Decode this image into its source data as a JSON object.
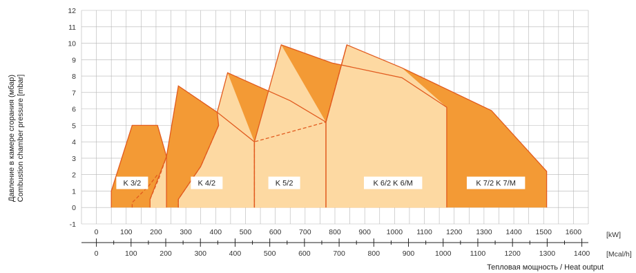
{
  "chart_data": {
    "type": "area",
    "title": "",
    "y_axis": {
      "label_line1": "Давление в камере сгорания (мбар)",
      "label_line2": "Combustion chamber pressure [mbar]",
      "ticks": [
        -1,
        0,
        1,
        2,
        3,
        4,
        5,
        6,
        7,
        8,
        9,
        10,
        11,
        12
      ],
      "range": [
        -1,
        12
      ]
    },
    "x_axis_kw": {
      "unit": "[kW]",
      "ticks": [
        0,
        100,
        200,
        300,
        400,
        500,
        600,
        700,
        800,
        900,
        1000,
        1100,
        1200,
        1300,
        1400,
        1500,
        1600
      ],
      "range": [
        -50,
        1650
      ]
    },
    "x_axis_mcal": {
      "unit": "[Mcal/h]",
      "ticks": [
        0,
        100,
        200,
        300,
        400,
        500,
        600,
        700,
        800,
        900,
        1000,
        1100,
        1200,
        1300,
        1400
      ]
    },
    "xlabel": "Тепловая мощность / Heat output",
    "grid": true,
    "colors": {
      "dark": "#f39a35",
      "light": "#fdd9a2",
      "edge": "#e15a1e",
      "grid": "#b5b5b5",
      "label_box": "#ffffff"
    },
    "series": [
      {
        "name": "K 3/2",
        "label_at": [
          120,
          1.5
        ],
        "boundary": [
          [
            50,
            0
          ],
          [
            50,
            1
          ],
          [
            120,
            5
          ],
          [
            205,
            5
          ],
          [
            235,
            3.1
          ],
          [
            235,
            0
          ]
        ],
        "min_curve": [
          [
            120,
            0.0
          ],
          [
            120,
            0.3
          ],
          [
            175,
            1.3
          ],
          [
            205,
            2.0
          ]
        ]
      },
      {
        "name": "K 4/2",
        "label_at": [
          370,
          1.5
        ],
        "boundary": [
          [
            180,
            0
          ],
          [
            180,
            0.5
          ],
          [
            235,
            3.1
          ],
          [
            275,
            7.4
          ],
          [
            405,
            5.8
          ],
          [
            530,
            4.0
          ],
          [
            530,
            0
          ]
        ],
        "min_curve": [
          [
            180,
            0.5
          ],
          [
            210,
            1.8
          ],
          [
            235,
            3.1
          ]
        ]
      },
      {
        "name": "K 5/2",
        "label_at": [
          630,
          1.5
        ],
        "boundary": [
          [
            275,
            0
          ],
          [
            275,
            0.5
          ],
          [
            350,
            2.5
          ],
          [
            410,
            5.0
          ],
          [
            405,
            5.8
          ],
          [
            440,
            8.2
          ],
          [
            650,
            6.5
          ],
          [
            770,
            5.2
          ],
          [
            770,
            0
          ]
        ],
        "min_curve": [
          [
            275,
            0.0
          ],
          [
            275,
            0.5
          ],
          [
            350,
            2.5
          ],
          [
            410,
            5.0
          ]
        ]
      },
      {
        "name": "K 6/2 K 6/M",
        "label_at": [
          995,
          1.5
        ],
        "boundary": [
          [
            530,
            0
          ],
          [
            530,
            4.0
          ],
          [
            620,
            9.9
          ],
          [
            790,
            8.8
          ],
          [
            1025,
            7.9
          ],
          [
            1175,
            6.1
          ],
          [
            1175,
            0
          ]
        ],
        "min_curve": [
          [
            530,
            0.0
          ],
          [
            530,
            4.0
          ],
          [
            770,
            5.2
          ],
          [
            840,
            9.9
          ]
        ]
      },
      {
        "name": "K 7/2 K 7/M",
        "label_at": [
          1340,
          1.5
        ],
        "boundary": [
          [
            770,
            0
          ],
          [
            770,
            5.2
          ],
          [
            840,
            9.9
          ],
          [
            1025,
            8.5
          ],
          [
            1325,
            5.9
          ],
          [
            1510,
            2.2
          ],
          [
            1510,
            0
          ]
        ],
        "min_curve": [
          [
            770,
            5.2
          ],
          [
            840,
            9.9
          ]
        ]
      }
    ]
  }
}
